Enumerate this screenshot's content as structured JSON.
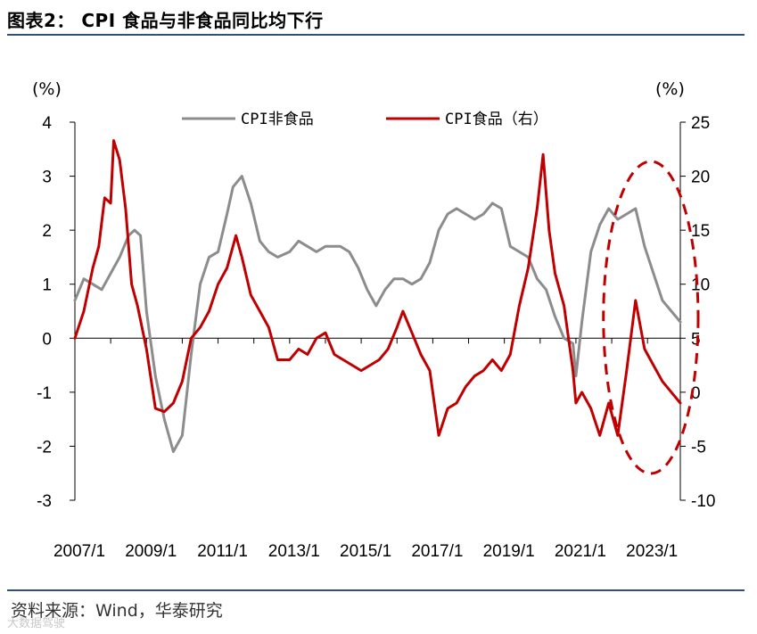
{
  "header": {
    "title": "图表2：  CPI 食品与非食品同比均下行"
  },
  "footer": {
    "source": "资料来源：Wind，华泰研究",
    "watermark": "大数据驾驶"
  },
  "chart_data": {
    "type": "line",
    "title": "",
    "x_tick_labels": [
      "2007/1",
      "2009/1",
      "2011/1",
      "2013/1",
      "2015/1",
      "2017/1",
      "2019/1",
      "2021/1",
      "2023/1"
    ],
    "x_range": [
      "2007-01",
      "2023-12"
    ],
    "y_left": {
      "unit_label": "(%)",
      "range": [
        -3,
        4
      ],
      "ticks": [
        4,
        3,
        2,
        1,
        0,
        -1,
        -2,
        -3
      ]
    },
    "y_right": {
      "unit_label": "(%)",
      "range": [
        -10,
        25
      ],
      "ticks": [
        25,
        20,
        15,
        10,
        5,
        0,
        -5,
        -10
      ]
    },
    "legend": {
      "placement": "top-center"
    },
    "series": [
      {
        "name": "CPI非食品",
        "axis": "left",
        "color": "#8c8c8c",
        "points": [
          [
            "2007-01",
            0.7
          ],
          [
            "2007-04",
            1.1
          ],
          [
            "2007-07",
            1.0
          ],
          [
            "2007-10",
            0.9
          ],
          [
            "2008-01",
            1.2
          ],
          [
            "2008-04",
            1.5
          ],
          [
            "2008-07",
            1.9
          ],
          [
            "2008-09",
            2.0
          ],
          [
            "2008-11",
            1.9
          ],
          [
            "2009-01",
            0.5
          ],
          [
            "2009-04",
            -0.7
          ],
          [
            "2009-07",
            -1.5
          ],
          [
            "2009-10",
            -2.1
          ],
          [
            "2010-01",
            -1.8
          ],
          [
            "2010-04",
            -0.3
          ],
          [
            "2010-07",
            1.0
          ],
          [
            "2010-10",
            1.5
          ],
          [
            "2011-01",
            1.6
          ],
          [
            "2011-04",
            2.3
          ],
          [
            "2011-06",
            2.8
          ],
          [
            "2011-09",
            3.0
          ],
          [
            "2011-12",
            2.5
          ],
          [
            "2012-03",
            1.8
          ],
          [
            "2012-06",
            1.6
          ],
          [
            "2012-09",
            1.5
          ],
          [
            "2013-01",
            1.6
          ],
          [
            "2013-04",
            1.8
          ],
          [
            "2013-07",
            1.7
          ],
          [
            "2013-10",
            1.6
          ],
          [
            "2014-01",
            1.7
          ],
          [
            "2014-06",
            1.7
          ],
          [
            "2014-09",
            1.6
          ],
          [
            "2014-12",
            1.3
          ],
          [
            "2015-03",
            0.9
          ],
          [
            "2015-06",
            0.6
          ],
          [
            "2015-09",
            0.9
          ],
          [
            "2015-12",
            1.1
          ],
          [
            "2016-03",
            1.1
          ],
          [
            "2016-06",
            1.0
          ],
          [
            "2016-09",
            1.1
          ],
          [
            "2016-12",
            1.4
          ],
          [
            "2017-03",
            2.0
          ],
          [
            "2017-06",
            2.3
          ],
          [
            "2017-09",
            2.4
          ],
          [
            "2017-12",
            2.3
          ],
          [
            "2018-03",
            2.2
          ],
          [
            "2018-06",
            2.3
          ],
          [
            "2018-09",
            2.5
          ],
          [
            "2018-12",
            2.4
          ],
          [
            "2019-03",
            1.7
          ],
          [
            "2019-06",
            1.6
          ],
          [
            "2019-09",
            1.5
          ],
          [
            "2019-12",
            1.1
          ],
          [
            "2020-03",
            0.9
          ],
          [
            "2020-06",
            0.4
          ],
          [
            "2020-09",
            0.0
          ],
          [
            "2020-12",
            -0.1
          ],
          [
            "2021-01",
            -0.7
          ],
          [
            "2021-03",
            0.3
          ],
          [
            "2021-06",
            1.6
          ],
          [
            "2021-09",
            2.1
          ],
          [
            "2021-12",
            2.4
          ],
          [
            "2022-03",
            2.2
          ],
          [
            "2022-06",
            2.3
          ],
          [
            "2022-09",
            2.4
          ],
          [
            "2022-12",
            1.7
          ],
          [
            "2023-03",
            1.2
          ],
          [
            "2023-06",
            0.7
          ],
          [
            "2023-09",
            0.5
          ],
          [
            "2023-12",
            0.3
          ]
        ]
      },
      {
        "name": "CPI食品（右）",
        "axis": "right",
        "color": "#c00000",
        "points": [
          [
            "2007-01",
            5.0
          ],
          [
            "2007-04",
            7.5
          ],
          [
            "2007-07",
            11.5
          ],
          [
            "2007-09",
            13.5
          ],
          [
            "2007-11",
            18.0
          ],
          [
            "2008-01",
            17.5
          ],
          [
            "2008-02",
            23.3
          ],
          [
            "2008-04",
            21.5
          ],
          [
            "2008-06",
            17.0
          ],
          [
            "2008-08",
            10.0
          ],
          [
            "2008-10",
            8.0
          ],
          [
            "2009-01",
            4.0
          ],
          [
            "2009-04",
            -1.5
          ],
          [
            "2009-07",
            -1.8
          ],
          [
            "2009-10",
            -1.0
          ],
          [
            "2010-01",
            1.0
          ],
          [
            "2010-04",
            5.0
          ],
          [
            "2010-07",
            6.0
          ],
          [
            "2010-10",
            7.5
          ],
          [
            "2011-01",
            10.0
          ],
          [
            "2011-04",
            11.5
          ],
          [
            "2011-07",
            14.5
          ],
          [
            "2011-09",
            12.5
          ],
          [
            "2011-12",
            9.0
          ],
          [
            "2012-03",
            7.5
          ],
          [
            "2012-06",
            6.0
          ],
          [
            "2012-09",
            3.0
          ],
          [
            "2013-01",
            3.0
          ],
          [
            "2013-04",
            4.0
          ],
          [
            "2013-07",
            3.5
          ],
          [
            "2013-10",
            5.0
          ],
          [
            "2014-01",
            5.5
          ],
          [
            "2014-04",
            3.5
          ],
          [
            "2014-07",
            3.0
          ],
          [
            "2014-10",
            2.5
          ],
          [
            "2015-01",
            2.0
          ],
          [
            "2015-04",
            2.5
          ],
          [
            "2015-07",
            3.0
          ],
          [
            "2015-10",
            4.0
          ],
          [
            "2016-01",
            6.0
          ],
          [
            "2016-03",
            7.5
          ],
          [
            "2016-06",
            5.5
          ],
          [
            "2016-09",
            3.5
          ],
          [
            "2016-12",
            2.0
          ],
          [
            "2017-03",
            -4.0
          ],
          [
            "2017-06",
            -1.5
          ],
          [
            "2017-09",
            -1.0
          ],
          [
            "2017-12",
            0.5
          ],
          [
            "2018-03",
            1.5
          ],
          [
            "2018-06",
            2.0
          ],
          [
            "2018-09",
            3.0
          ],
          [
            "2018-12",
            2.0
          ],
          [
            "2019-03",
            3.5
          ],
          [
            "2019-06",
            8.0
          ],
          [
            "2019-09",
            11.5
          ],
          [
            "2019-12",
            17.0
          ],
          [
            "2020-02",
            22.0
          ],
          [
            "2020-04",
            15.0
          ],
          [
            "2020-06",
            11.0
          ],
          [
            "2020-09",
            8.0
          ],
          [
            "2020-12",
            2.0
          ],
          [
            "2021-01",
            -1.0
          ],
          [
            "2021-03",
            0.0
          ],
          [
            "2021-06",
            -1.5
          ],
          [
            "2021-09",
            -4.0
          ],
          [
            "2021-12",
            -1.0
          ],
          [
            "2022-03",
            -4.0
          ],
          [
            "2022-06",
            2.0
          ],
          [
            "2022-09",
            8.5
          ],
          [
            "2022-12",
            4.0
          ],
          [
            "2023-03",
            2.5
          ],
          [
            "2023-06",
            1.0
          ],
          [
            "2023-09",
            0.0
          ],
          [
            "2023-12",
            -1.0
          ]
        ]
      }
    ],
    "annotation": {
      "shape": "dashed-ellipse",
      "color": "#c00000",
      "x_range": [
        "2022-03",
        "2023-12"
      ]
    }
  }
}
